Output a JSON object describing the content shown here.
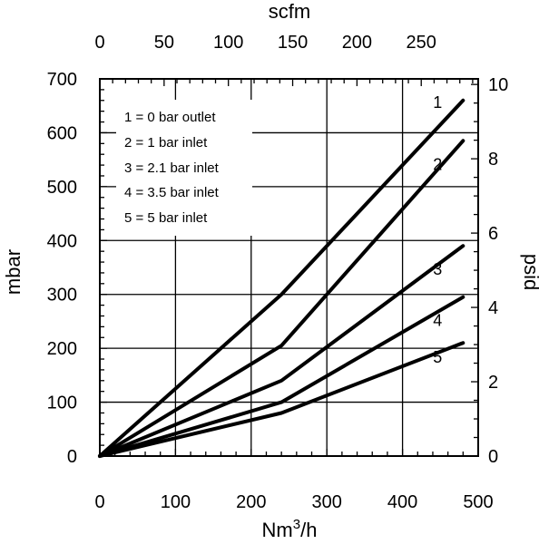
{
  "chart_data": {
    "type": "line",
    "bottom_axis": {
      "label_main": "Nm",
      "label_sup": "3",
      "label_tail": "/h",
      "range": [
        0,
        500
      ],
      "ticks": [
        "0",
        "100",
        "200",
        "300",
        "400",
        "500"
      ],
      "tick_values": [
        0,
        100,
        200,
        300,
        400,
        500
      ],
      "minor_step": 20
    },
    "top_axis": {
      "label": "scfm",
      "range": [
        0,
        294.3
      ],
      "ticks": [
        "0",
        "50",
        "100",
        "150",
        "200",
        "250"
      ],
      "tick_values": [
        0,
        50,
        100,
        150,
        200,
        250
      ],
      "minor_step": 10
    },
    "left_axis": {
      "label": "mbar",
      "range": [
        0,
        700
      ],
      "ticks": [
        "0",
        "100",
        "200",
        "300",
        "400",
        "500",
        "600",
        "700"
      ],
      "tick_values": [
        0,
        100,
        200,
        300,
        400,
        500,
        600,
        700
      ],
      "minor_step": 20
    },
    "right_axis": {
      "label": "psid",
      "range": [
        0,
        10.15
      ],
      "ticks": [
        "0",
        "2",
        "4",
        "6",
        "8",
        "10"
      ],
      "tick_values": [
        0,
        2,
        4,
        6,
        8,
        10
      ],
      "minor_step": 0.5
    },
    "grid": true,
    "legend": {
      "placement": "top-left",
      "entries": [
        "1 = 0 bar outlet",
        "2 = 1 bar inlet",
        "3 = 2.1 bar inlet",
        "4 = 3.5 bar inlet",
        "5 = 5 bar inlet"
      ]
    },
    "series": [
      {
        "label": "1",
        "x": [
          0,
          240,
          480
        ],
        "y": [
          0,
          300,
          660
        ]
      },
      {
        "label": "2",
        "x": [
          0,
          240,
          480
        ],
        "y": [
          0,
          205,
          585
        ]
      },
      {
        "label": "3",
        "x": [
          0,
          240,
          480
        ],
        "y": [
          0,
          140,
          390
        ]
      },
      {
        "label": "4",
        "x": [
          0,
          240,
          480
        ],
        "y": [
          0,
          100,
          295
        ]
      },
      {
        "label": "5",
        "x": [
          0,
          240,
          480
        ],
        "y": [
          0,
          80,
          210
        ]
      }
    ],
    "colors": {
      "line": "#000000",
      "grid": "#000000",
      "background": "#ffffff"
    }
  }
}
